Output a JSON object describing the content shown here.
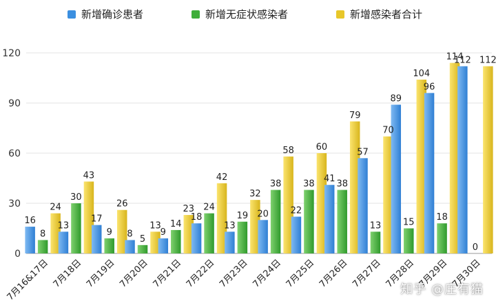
{
  "chart_data": {
    "type": "bar",
    "categories": [
      "7月16&17日",
      "7月18日",
      "7月19日",
      "7月20日",
      "7月21日",
      "7月22日",
      "7月23日",
      "7月24日",
      "7月25日",
      "7月26日",
      "7月27日",
      "7月28日",
      "7月29日",
      "7月30日"
    ],
    "series": [
      {
        "name": "新增确诊患者",
        "color": "#3b8fe0",
        "values": [
          16,
          13,
          17,
          8,
          9,
          18,
          13,
          20,
          22,
          41,
          57,
          89,
          96,
          112
        ]
      },
      {
        "name": "新增无症状感染者",
        "color": "#3fae3a",
        "values": [
          8,
          30,
          9,
          5,
          14,
          24,
          19,
          38,
          38,
          38,
          13,
          15,
          18,
          0
        ]
      },
      {
        "name": "新增感染者合计",
        "color": "#e8c72a",
        "values": [
          24,
          43,
          26,
          13,
          23,
          42,
          32,
          58,
          60,
          79,
          70,
          104,
          114,
          112
        ]
      }
    ],
    "yticks": [
      0,
      30,
      60,
      90,
      120
    ],
    "ylim": [
      0,
      120
    ],
    "grid": true,
    "legend": "top"
  },
  "watermark": "知乎 @庄有猫"
}
